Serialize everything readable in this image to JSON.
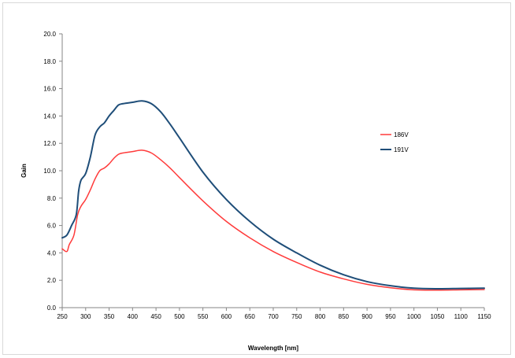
{
  "chart_data": {
    "type": "line",
    "xlabel": "Wavelength [nm]",
    "ylabel": "Gain",
    "xlim": [
      250,
      1150
    ],
    "ylim": [
      0,
      20
    ],
    "x_ticks": [
      250,
      300,
      350,
      400,
      450,
      500,
      550,
      600,
      650,
      700,
      750,
      800,
      850,
      900,
      950,
      1000,
      1050,
      1100,
      1150
    ],
    "y_ticks": [
      "0.0",
      "2.0",
      "4.0",
      "6.0",
      "8.0",
      "10.0",
      "12.0",
      "14.0",
      "16.0",
      "18.0",
      "20.0"
    ],
    "grid": false,
    "legend_position": "right",
    "series": [
      {
        "name": "186V",
        "color": "#ff3b3b",
        "x": [
          250,
          260,
          265,
          275,
          283,
          290,
          300,
          310,
          320,
          330,
          340,
          350,
          360,
          370,
          380,
          400,
          420,
          440,
          460,
          480,
          500,
          550,
          600,
          650,
          700,
          750,
          800,
          850,
          900,
          950,
          1000,
          1050,
          1100,
          1150
        ],
        "y": [
          4.3,
          4.1,
          4.6,
          5.3,
          6.8,
          7.4,
          7.9,
          8.6,
          9.4,
          10.0,
          10.2,
          10.5,
          10.9,
          11.2,
          11.3,
          11.4,
          11.5,
          11.3,
          10.8,
          10.2,
          9.5,
          7.8,
          6.3,
          5.1,
          4.1,
          3.3,
          2.6,
          2.1,
          1.7,
          1.45,
          1.3,
          1.28,
          1.3,
          1.32
        ]
      },
      {
        "name": "191V",
        "color": "#1f4e79",
        "x": [
          250,
          260,
          270,
          280,
          285,
          290,
          300,
          310,
          320,
          330,
          340,
          350,
          360,
          370,
          380,
          400,
          420,
          440,
          460,
          480,
          500,
          550,
          600,
          650,
          700,
          750,
          800,
          850,
          900,
          950,
          1000,
          1050,
          1100,
          1150
        ],
        "y": [
          5.1,
          5.3,
          6.0,
          6.8,
          8.5,
          9.3,
          9.8,
          11.0,
          12.6,
          13.2,
          13.5,
          14.0,
          14.4,
          14.8,
          14.9,
          15.0,
          15.1,
          14.9,
          14.3,
          13.4,
          12.4,
          9.9,
          7.9,
          6.3,
          5.0,
          4.0,
          3.1,
          2.4,
          1.9,
          1.6,
          1.42,
          1.38,
          1.4,
          1.42
        ]
      }
    ]
  }
}
